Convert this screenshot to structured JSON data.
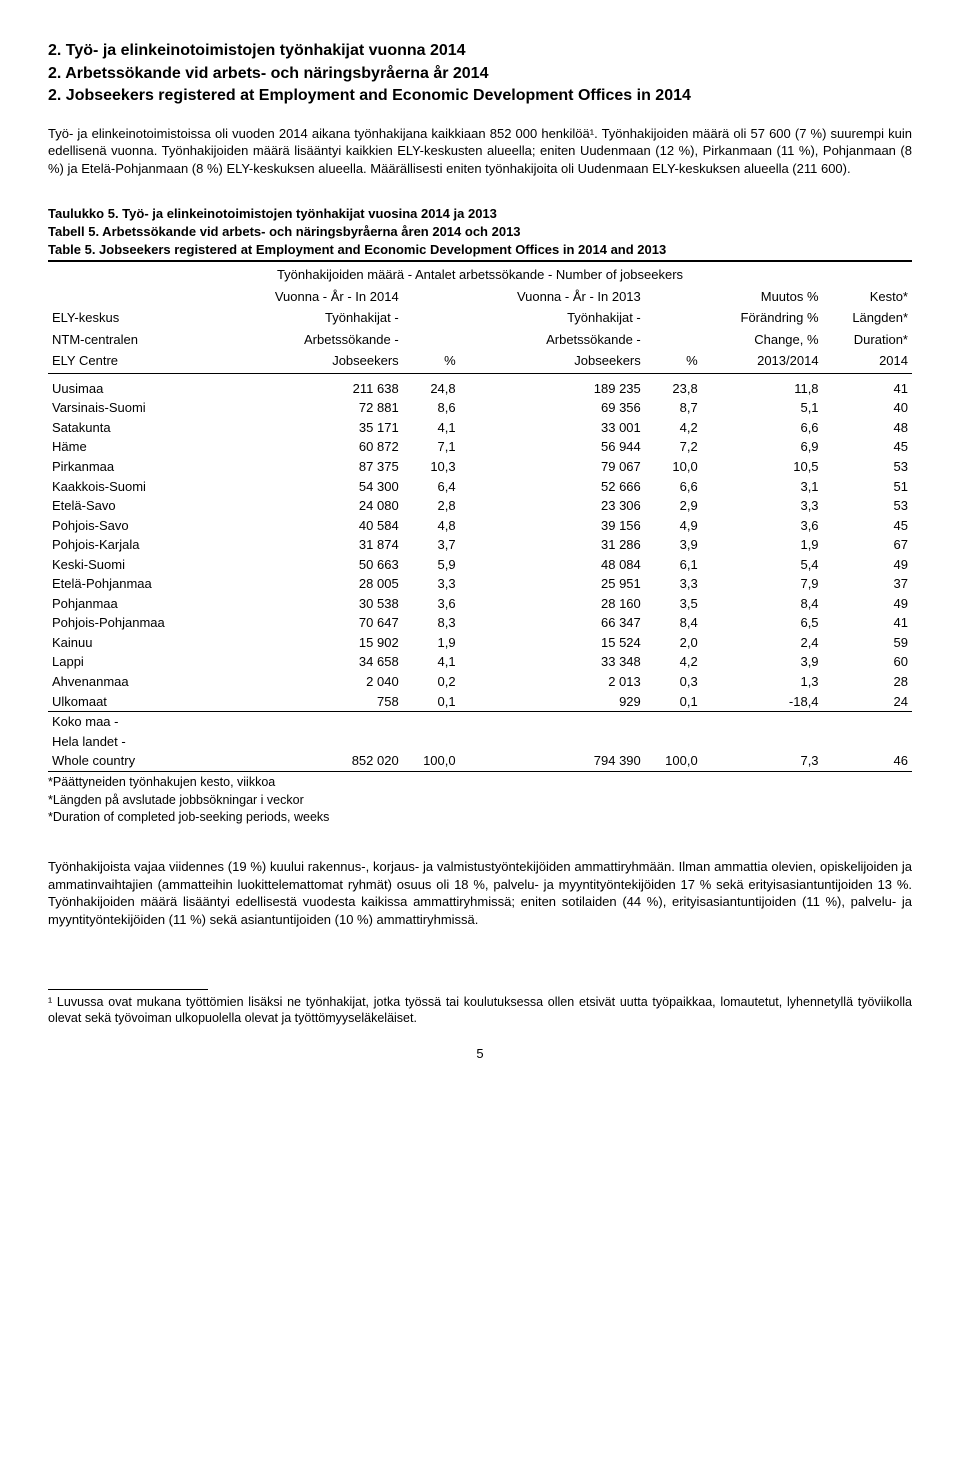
{
  "heading": {
    "l1": "2. Työ- ja elinkeinotoimistojen työnhakijat vuonna 2014",
    "l2": "2. Arbetssökande vid arbets- och näringsbyråerna år 2014",
    "l3": "2. Jobseekers registered at Employment and Economic Development Offices in 2014"
  },
  "intro": "Työ- ja elinkeinotoimistoissa oli vuoden 2014 aikana työnhakijana kaikkiaan 852 000 henkilöä¹. Työnhakijoiden määrä oli 57 600 (7 %) suurempi kuin edellisenä vuonna. Työnhakijoiden määrä lisääntyi kaikkien ELY-keskusten alueella; eniten Uudenmaan (12 %), Pirkanmaan (11 %), Pohjanmaan (8 %) ja Etelä-Pohjanmaan (8 %) ELY-keskuksen alueella. Määrällisesti eniten työnhakijoita oli Uudenmaan ELY-keskuksen alueella (211 600).",
  "tableTitle": {
    "l1": "Taulukko 5. Työ- ja elinkeinotoimistojen työnhakijat vuosina 2014 ja 2013",
    "l2": "Tabell 5. Arbetssökande vid arbets- och näringsbyråerna åren 2014 och 2013",
    "l3": "Table 5. Jobseekers registered at Employment and Economic Development Offices in 2014 and 2013"
  },
  "tableSub": "Työnhakijoiden määrä - Antalet arbetssökande - Number of jobseekers",
  "head": {
    "year2014": "Vuonna - År - In 2014",
    "year2013": "Vuonna - År - In 2013",
    "muutos": "Muutos %",
    "kesto": "Kesto*",
    "ely": "ELY-keskus",
    "ntm": "NTM-centralen",
    "elyc": "ELY Centre",
    "tyon": "Työnhakijat -",
    "arbets": "Arbetssökande -",
    "jobs": "Jobseekers",
    "pct": "%",
    "forand": "Förändring %",
    "change": "Change, %",
    "yrs": "2013/2014",
    "langden": "Längden*",
    "duration": "Duration*",
    "yr": "2014"
  },
  "rows": [
    {
      "name": "Uusimaa",
      "v14": "211 638",
      "p14": "24,8",
      "v13": "189 235",
      "p13": "23,8",
      "chg": "11,8",
      "dur": "41"
    },
    {
      "name": "Varsinais-Suomi",
      "v14": "72 881",
      "p14": "8,6",
      "v13": "69 356",
      "p13": "8,7",
      "chg": "5,1",
      "dur": "40"
    },
    {
      "name": "Satakunta",
      "v14": "35 171",
      "p14": "4,1",
      "v13": "33 001",
      "p13": "4,2",
      "chg": "6,6",
      "dur": "48"
    },
    {
      "name": "Häme",
      "v14": "60 872",
      "p14": "7,1",
      "v13": "56 944",
      "p13": "7,2",
      "chg": "6,9",
      "dur": "45"
    },
    {
      "name": "Pirkanmaa",
      "v14": "87 375",
      "p14": "10,3",
      "v13": "79 067",
      "p13": "10,0",
      "chg": "10,5",
      "dur": "53"
    },
    {
      "name": "Kaakkois-Suomi",
      "v14": "54 300",
      "p14": "6,4",
      "v13": "52 666",
      "p13": "6,6",
      "chg": "3,1",
      "dur": "51"
    },
    {
      "name": "Etelä-Savo",
      "v14": "24 080",
      "p14": "2,8",
      "v13": "23 306",
      "p13": "2,9",
      "chg": "3,3",
      "dur": "53"
    },
    {
      "name": "Pohjois-Savo",
      "v14": "40 584",
      "p14": "4,8",
      "v13": "39 156",
      "p13": "4,9",
      "chg": "3,6",
      "dur": "45"
    },
    {
      "name": "Pohjois-Karjala",
      "v14": "31 874",
      "p14": "3,7",
      "v13": "31 286",
      "p13": "3,9",
      "chg": "1,9",
      "dur": "67"
    },
    {
      "name": "Keski-Suomi",
      "v14": "50 663",
      "p14": "5,9",
      "v13": "48 084",
      "p13": "6,1",
      "chg": "5,4",
      "dur": "49"
    },
    {
      "name": "Etelä-Pohjanmaa",
      "v14": "28 005",
      "p14": "3,3",
      "v13": "25 951",
      "p13": "3,3",
      "chg": "7,9",
      "dur": "37"
    },
    {
      "name": "Pohjanmaa",
      "v14": "30 538",
      "p14": "3,6",
      "v13": "28 160",
      "p13": "3,5",
      "chg": "8,4",
      "dur": "49"
    },
    {
      "name": "Pohjois-Pohjanmaa",
      "v14": "70 647",
      "p14": "8,3",
      "v13": "66 347",
      "p13": "8,4",
      "chg": "6,5",
      "dur": "41"
    },
    {
      "name": "Kainuu",
      "v14": "15 902",
      "p14": "1,9",
      "v13": "15 524",
      "p13": "2,0",
      "chg": "2,4",
      "dur": "59"
    },
    {
      "name": "Lappi",
      "v14": "34 658",
      "p14": "4,1",
      "v13": "33 348",
      "p13": "4,2",
      "chg": "3,9",
      "dur": "60"
    },
    {
      "name": "Ahvenanmaa",
      "v14": "2 040",
      "p14": "0,2",
      "v13": "2 013",
      "p13": "0,3",
      "chg": "1,3",
      "dur": "28"
    },
    {
      "name": "Ulkomaat",
      "v14": "758",
      "p14": "0,1",
      "v13": "929",
      "p13": "0,1",
      "chg": "-18,4",
      "dur": "24"
    }
  ],
  "total": {
    "l1": "Koko maa -",
    "l2": "Hela landet -",
    "l3": "Whole country",
    "v14": "852 020",
    "p14": "100,0",
    "v13": "794 390",
    "p13": "100,0",
    "chg": "7,3",
    "dur": "46"
  },
  "fnotes": {
    "f1": "*Päättyneiden työnhakujen kesto, viikkoa",
    "f2": "*Längden på avslutade jobbsökningar i veckor",
    "f3": "*Duration of completed job-seeking periods, weeks"
  },
  "para2": "Työnhakijoista vajaa viidennes (19 %) kuului rakennus-, korjaus- ja valmistustyöntekijöiden ammattiryhmään. Ilman ammattia olevien, opiskelijoiden ja ammatinvaihtajien (ammatteihin luokittelemattomat ryhmät) osuus oli 18 %, palvelu- ja myyntityöntekijöiden 17 % sekä erityisasiantuntijoiden 13 %. Työnhakijoiden määrä lisääntyi edellisestä vuodesta kaikissa ammattiryhmissä; eniten sotilaiden (44 %), erityisasiantuntijoiden (11 %), palvelu- ja myyntityöntekijöiden (11 %) sekä asiantuntijoiden (10 %) ammattiryhmissä.",
  "endnote": "¹ Luvussa ovat mukana työttömien lisäksi ne työnhakijat, jotka työssä tai koulutuksessa ollen etsivät uutta työpaikkaa, lomautetut, lyhennetyllä työviikolla olevat sekä työvoiman ulkopuolella olevat ja työttömyyseläkeläiset.",
  "pagenum": "5"
}
